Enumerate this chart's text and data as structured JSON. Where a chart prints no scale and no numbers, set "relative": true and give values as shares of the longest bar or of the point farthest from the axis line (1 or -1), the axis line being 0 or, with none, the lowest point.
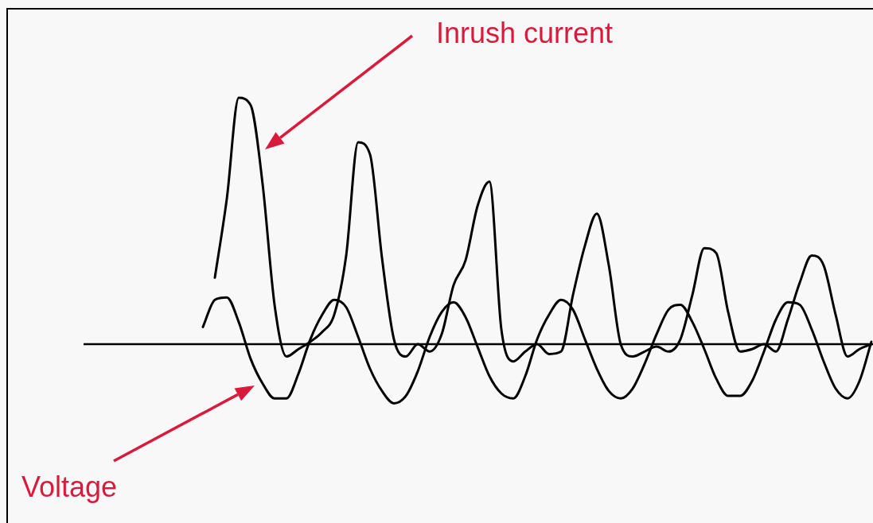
{
  "chart_data": {
    "type": "line",
    "relative": true,
    "marker": "none",
    "line_style": "solid",
    "categories": [
      null,
      null,
      null,
      null,
      null,
      null,
      null,
      null,
      null,
      null,
      null,
      null,
      null,
      null,
      null,
      null,
      null,
      null,
      null,
      null,
      null,
      null,
      null,
      null,
      null,
      null,
      null,
      null,
      null,
      null,
      null,
      null,
      null,
      null,
      null,
      null,
      null,
      null,
      null,
      null,
      null,
      null,
      null,
      null,
      null,
      null,
      null,
      null,
      null,
      null,
      null,
      null,
      null,
      null,
      null,
      null,
      null,
      null,
      null,
      null,
      null,
      null,
      null,
      null,
      null,
      null,
      null
    ],
    "series": [
      {
        "name": "Inrush current",
        "color": "#000000",
        "values": [
          null,
          null,
          null,
          null,
          null,
          null,
          null,
          null,
          null,
          null,
          null,
          0.27,
          0.59,
          1.0,
          0.97,
          0.65,
          0.16,
          -0.05,
          -0.02,
          0.01,
          0.05,
          0.12,
          0.36,
          0.82,
          0.77,
          0.35,
          0.02,
          -0.05,
          0.0,
          -0.03,
          0.04,
          0.24,
          0.34,
          0.56,
          0.66,
          0.06,
          -0.07,
          -0.03,
          0.0,
          -0.04,
          -0.03,
          0.2,
          0.4,
          0.53,
          0.32,
          0.0,
          -0.05,
          -0.03,
          -0.01,
          -0.03,
          0.02,
          0.2,
          0.39,
          0.37,
          0.13,
          -0.03,
          -0.02,
          0.0,
          -0.03,
          0.1,
          0.25,
          0.36,
          0.32,
          0.12,
          -0.05,
          -0.02,
          0.0
        ]
      },
      {
        "name": "Voltage",
        "color": "#000000",
        "values": [
          null,
          null,
          null,
          null,
          null,
          null,
          null,
          null,
          null,
          null,
          0.07,
          0.18,
          0.19,
          0.09,
          -0.06,
          -0.16,
          -0.22,
          -0.22,
          -0.12,
          0.02,
          0.12,
          0.18,
          0.15,
          0.03,
          -0.1,
          -0.19,
          -0.24,
          -0.21,
          -0.11,
          0.03,
          0.13,
          0.17,
          0.11,
          -0.01,
          -0.13,
          -0.2,
          -0.22,
          -0.13,
          0.02,
          0.12,
          0.18,
          0.14,
          0.02,
          -0.1,
          -0.19,
          -0.22,
          -0.18,
          -0.08,
          0.04,
          0.14,
          0.16,
          0.09,
          -0.02,
          -0.14,
          -0.21,
          -0.21,
          -0.15,
          -0.03,
          0.1,
          0.17,
          0.16,
          0.06,
          -0.07,
          -0.18,
          -0.22,
          -0.15,
          0.01
        ]
      }
    ]
  }
}
